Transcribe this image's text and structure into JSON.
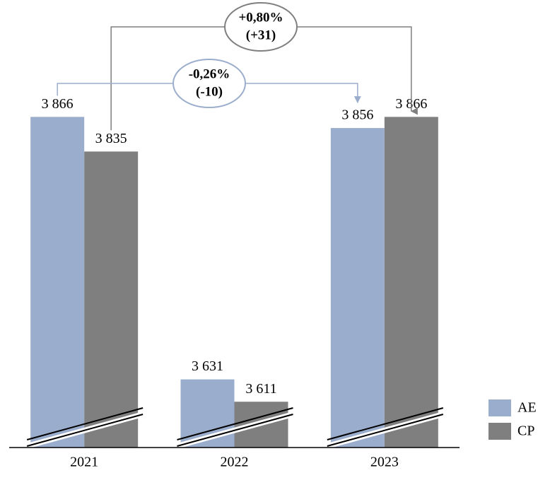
{
  "chart_data": {
    "type": "bar",
    "categories": [
      "2021",
      "2022",
      "2023"
    ],
    "series": [
      {
        "name": "AE",
        "color": "#9badcc",
        "values": [
          3866,
          3631,
          3856
        ],
        "value_labels": [
          "3 866",
          "3 631",
          "3 856"
        ]
      },
      {
        "name": "CP",
        "color": "#7f7f7f",
        "values": [
          3835,
          3611,
          3866
        ],
        "value_labels": [
          "3 835",
          "3 611",
          "3 866"
        ]
      }
    ],
    "ylim": [
      3570,
      3970
    ],
    "annotations": [
      {
        "lines": [
          "+0,80%",
          "(+31)"
        ],
        "color": "#7f7f7f"
      },
      {
        "lines": [
          "-0,26%",
          "(-10)"
        ],
        "color": "#9badcc"
      }
    ],
    "legend": "bottom-right"
  }
}
